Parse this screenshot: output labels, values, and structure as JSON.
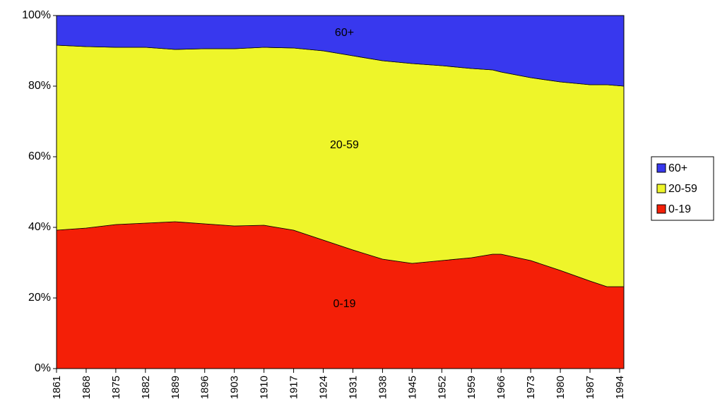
{
  "chart_data": {
    "type": "stacked_area",
    "x": [
      1861,
      1868,
      1875,
      1882,
      1889,
      1896,
      1903,
      1910,
      1917,
      1924,
      1931,
      1938,
      1945,
      1952,
      1959,
      1964,
      1966,
      1973,
      1980,
      1987,
      1991,
      1995
    ],
    "series": [
      {
        "name": "0-19",
        "color": "#f41f07",
        "values": [
          39.2,
          39.8,
          40.8,
          41.2,
          41.6,
          41.0,
          40.4,
          40.6,
          39.2,
          36.4,
          33.6,
          31.0,
          29.8,
          30.6,
          31.4,
          32.4,
          32.4,
          30.6,
          27.8,
          24.8,
          23.2,
          23.2
        ]
      },
      {
        "name": "20-59",
        "color": "#eef52a",
        "values": [
          52.4,
          51.4,
          50.2,
          49.8,
          48.8,
          49.6,
          50.2,
          50.4,
          51.6,
          53.6,
          55.0,
          56.2,
          56.6,
          55.2,
          53.6,
          52.2,
          51.6,
          51.8,
          53.4,
          55.6,
          57.2,
          56.8
        ]
      },
      {
        "name": "60+",
        "color": "#3838ee",
        "values": [
          8.4,
          8.8,
          9.0,
          9.0,
          9.6,
          9.4,
          9.4,
          9.0,
          9.2,
          10.0,
          11.4,
          12.8,
          13.6,
          14.2,
          15.0,
          15.4,
          16.0,
          17.6,
          18.8,
          19.6,
          19.6,
          20.0
        ]
      }
    ],
    "xlim": [
      1861,
      1995
    ],
    "xticks": [
      1861,
      1868,
      1875,
      1882,
      1889,
      1896,
      1903,
      1910,
      1917,
      1924,
      1931,
      1938,
      1945,
      1952,
      1959,
      1966,
      1973,
      1980,
      1987,
      1994
    ],
    "ylim": [
      0,
      100
    ],
    "yticks": [
      {
        "value": 0,
        "label": "0%"
      },
      {
        "value": 20,
        "label": "20%"
      },
      {
        "value": 40,
        "label": "40%"
      },
      {
        "value": 60,
        "label": "60%"
      },
      {
        "value": 80,
        "label": "80%"
      },
      {
        "value": 100,
        "label": "100%"
      }
    ],
    "legend": "right"
  }
}
